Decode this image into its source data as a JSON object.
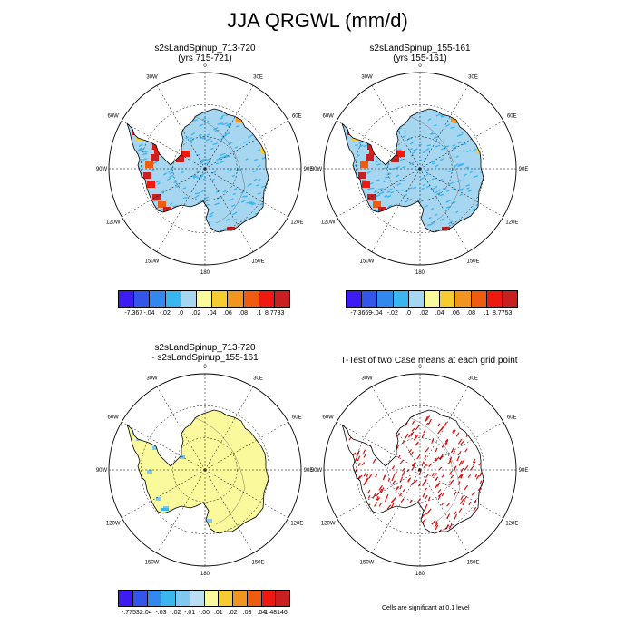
{
  "title": "JJA QRGWL (mm/d)",
  "chart_data": [
    {
      "type": "heatmap",
      "projection": "south-polar stereographic",
      "title_line1": "s2sLandSpinup_713-720",
      "title_line2": "(yrs 715-721)",
      "lon_labels": [
        "0",
        "30E",
        "60E",
        "90E",
        "120E",
        "150E",
        "180",
        "150W",
        "120W",
        "90W",
        "60W",
        "30W"
      ],
      "colorbar": {
        "labels": [
          "-7.367",
          "-.04",
          "-.02",
          ".0",
          ".02",
          ".04",
          ".06",
          ".08",
          ".1",
          "8.7733"
        ],
        "colors": [
          "#3c1cf0",
          "#3355e8",
          "#3388f0",
          "#3ab6ee",
          "#a6d6f0",
          "#fafa9c",
          "#f6cc30",
          "#f29420",
          "#ef5c10",
          "#ee1a10",
          "#c82020"
        ]
      },
      "dominant_range": ".0 to .02"
    },
    {
      "type": "heatmap",
      "projection": "south-polar stereographic",
      "title_line1": "s2sLandSpinup_155-161",
      "title_line2": "(yrs 155-161)",
      "lon_labels": [
        "0",
        "30E",
        "60E",
        "90E",
        "120E",
        "150E",
        "180",
        "150W",
        "120W",
        "90W",
        "60W",
        "30W"
      ],
      "colorbar": {
        "labels": [
          "-7.3669",
          "-.04",
          "-.02",
          ".0",
          ".02",
          ".04",
          ".06",
          ".08",
          ".1",
          "8.7753"
        ],
        "colors": [
          "#3c1cf0",
          "#3355e8",
          "#3388f0",
          "#3ab6ee",
          "#a6d6f0",
          "#fafa9c",
          "#f6cc30",
          "#f29420",
          "#ef5c10",
          "#ee1a10",
          "#c82020"
        ]
      },
      "dominant_range": ".0 to .02"
    },
    {
      "type": "heatmap",
      "projection": "south-polar stereographic",
      "title_line1": "s2sLandSpinup_713-720",
      "title_line2": "- s2sLandSpinup_155-161",
      "lon_labels": [
        "0",
        "30E",
        "60E",
        "90E",
        "120E",
        "150E",
        "180",
        "150W",
        "120W",
        "90W",
        "60W",
        "30W"
      ],
      "colorbar": {
        "labels": [
          "-.77532",
          "-.04",
          "-.03",
          "-.02",
          "-.01",
          "-.00",
          ".01",
          ".02",
          ".03",
          ".04",
          "1.48146"
        ],
        "colors": [
          "#3c1cf0",
          "#3355e8",
          "#3388f0",
          "#3ab6ee",
          "#80c8f0",
          "#b8e0f2",
          "#fafa9c",
          "#f6cc30",
          "#f29420",
          "#ef5c10",
          "#ee1a10",
          "#c82020"
        ]
      },
      "dominant_range": "-.00 to .01"
    },
    {
      "type": "heatmap",
      "projection": "south-polar stereographic",
      "title_line1": "T-Test of two Case means at each grid point",
      "title_line2": "",
      "lon_labels": [
        "0",
        "30E",
        "60E",
        "90E",
        "120E",
        "150E",
        "180",
        "150W",
        "120W",
        "90W",
        "60W",
        "30W"
      ],
      "note": "Cells are significant at 0.1 level",
      "significant_color": "#e01010"
    }
  ],
  "colors": {
    "ocean": "#ffffff",
    "coast": "#000000",
    "graticule": "#000000"
  }
}
